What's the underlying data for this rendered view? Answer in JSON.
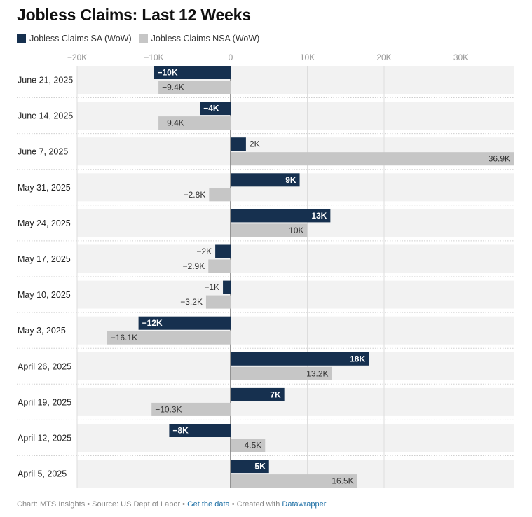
{
  "title": "Jobless Claims: Last 12 Weeks",
  "colors": {
    "sa": "#16304f",
    "nsa": "#c6c6c6",
    "rowBg": "#f2f2f2"
  },
  "footer": {
    "prefix": "Chart: MTS Insights • Source: US Dept of Labor • ",
    "get_data": "Get the data",
    "middle": " • Created with ",
    "datawrapper": "Datawrapper"
  },
  "chart_data": {
    "type": "bar",
    "orientation": "horizontal",
    "xlim": [
      -20000,
      37000
    ],
    "ticks": [
      -20000,
      -10000,
      0,
      10000,
      20000,
      30000
    ],
    "tick_labels": [
      "−20K",
      "−10K",
      "0",
      "10K",
      "20K",
      "30K"
    ],
    "categories": [
      "June 21, 2025",
      "June 14, 2025",
      "June 7, 2025",
      "May 31, 2025",
      "May 24, 2025",
      "May 17, 2025",
      "May 10, 2025",
      "May 3, 2025",
      "April 26, 2025",
      "April 19, 2025",
      "April 12, 2025",
      "April 5, 2025"
    ],
    "series": [
      {
        "name": "Jobless Claims SA (WoW)",
        "values": [
          -10000,
          -4000,
          2000,
          9000,
          13000,
          -2000,
          -1000,
          -12000,
          18000,
          7000,
          -8000,
          5000
        ],
        "labels": [
          "−10K",
          "−4K",
          "2K",
          "9K",
          "13K",
          "−2K",
          "−1K",
          "−12K",
          "18K",
          "7K",
          "−8K",
          "5K"
        ]
      },
      {
        "name": "Jobless Claims NSA (WoW)",
        "values": [
          -9400,
          -9400,
          36900,
          -2800,
          10000,
          -2900,
          -3200,
          -16100,
          13200,
          -10300,
          4500,
          16500
        ],
        "labels": [
          "−9.4K",
          "−9.4K",
          "36.9K",
          "−2.8K",
          "10K",
          "−2.9K",
          "−3.2K",
          "−16.1K",
          "13.2K",
          "−10.3K",
          "4.5K",
          "16.5K"
        ]
      }
    ],
    "legend": "top-left",
    "grid": true
  }
}
